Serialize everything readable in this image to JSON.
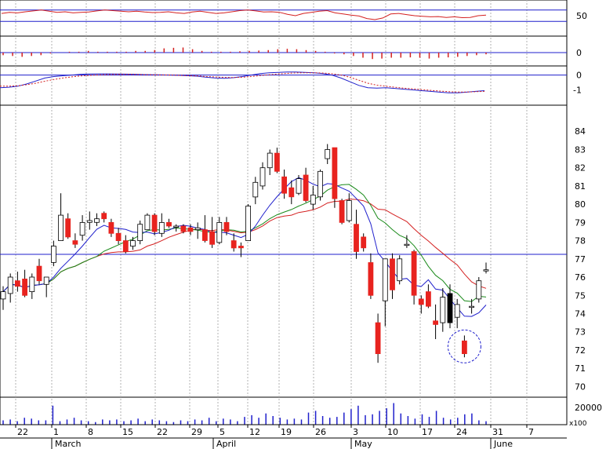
{
  "colors": {
    "up_candle": "#ffffff",
    "down_candle": "#e8231f",
    "neutral_candle": "#000000",
    "ma_fast": "#1f1fcc",
    "ma_mid": "#1a8a1a",
    "ma_slow": "#d42020",
    "rsi_line": "#d42020",
    "ref_line": "#1f1fcc",
    "macd_signal": "#d42020",
    "grid": "#b0b0b0",
    "circle": "#1f1fcc"
  },
  "chart_data": [
    {
      "type": "line",
      "panel": "oscillator",
      "ylim": [
        0,
        100
      ],
      "ticks": [
        "50"
      ],
      "ref_levels": [
        30,
        70
      ],
      "values": [
        58,
        62,
        60,
        64,
        67,
        70,
        66,
        62,
        64,
        60,
        62,
        63,
        67,
        70,
        68,
        66,
        64,
        66,
        63,
        61,
        62,
        64,
        60,
        58,
        63,
        66,
        62,
        58,
        60,
        64,
        68,
        70,
        67,
        63,
        64,
        62,
        55,
        50,
        58,
        62,
        66,
        68,
        60,
        56,
        52,
        49,
        40,
        36,
        42,
        56,
        58,
        54,
        50,
        48,
        46,
        47,
        44,
        46,
        43,
        44,
        50,
        52
      ]
    },
    {
      "type": "bar",
      "panel": "histogram",
      "ylim": [
        -0.6,
        0.6
      ],
      "ticks": [
        "0"
      ],
      "values": [
        -0.15,
        -0.2,
        -0.25,
        -0.2,
        -0.15,
        -0.05,
        0,
        0.05,
        0.05,
        0.1,
        0.05,
        0.05,
        0.05,
        0.05,
        0.1,
        0.1,
        0.15,
        0.25,
        0.28,
        0.3,
        0.2,
        0.1,
        0.05,
        0.05,
        0.05,
        0.08,
        0.1,
        0.12,
        0.15,
        0.2,
        0.22,
        0.2,
        0.15,
        0.1,
        0.05,
        -0.05,
        -0.1,
        -0.2,
        -0.3,
        -0.38,
        -0.35,
        -0.3,
        -0.3,
        -0.28,
        -0.3,
        -0.35,
        -0.3,
        -0.28,
        -0.25,
        -0.2,
        -0.15,
        -0.1
      ]
    },
    {
      "type": "line",
      "panel": "macd",
      "ylim": [
        -1.5,
        0.4
      ],
      "ticks": [
        "0",
        "-1"
      ],
      "series": [
        {
          "values": [
            -0.85,
            -0.82,
            -0.75,
            -0.6,
            -0.4,
            -0.2,
            -0.1,
            -0.05,
            0,
            0.05,
            0.07,
            0.08,
            0.08,
            0.07,
            0.06,
            0.05,
            0.03,
            0.02,
            0.01,
            0.0,
            -0.02,
            -0.05,
            -0.08,
            -0.15,
            -0.2,
            -0.22,
            -0.18,
            -0.1,
            0.0,
            0.1,
            0.15,
            0.18,
            0.2,
            0.2,
            0.18,
            0.15,
            0.1,
            0.0,
            -0.2,
            -0.45,
            -0.7,
            -0.85,
            -0.88,
            -0.85,
            -0.9,
            -0.95,
            -1.0,
            -1.05,
            -1.1,
            -1.15,
            -1.2,
            -1.2,
            -1.15,
            -1.1,
            -1.05
          ]
        },
        {
          "values": [
            -0.75,
            -0.75,
            -0.72,
            -0.65,
            -0.55,
            -0.42,
            -0.3,
            -0.2,
            -0.12,
            -0.06,
            -0.02,
            0.01,
            0.03,
            0.04,
            0.04,
            0.04,
            0.03,
            0.02,
            0.01,
            0.0,
            -0.02,
            -0.04,
            -0.06,
            -0.1,
            -0.13,
            -0.16,
            -0.17,
            -0.15,
            -0.1,
            -0.04,
            0.02,
            0.07,
            0.11,
            0.14,
            0.15,
            0.15,
            0.13,
            0.09,
            0.0,
            -0.15,
            -0.35,
            -0.55,
            -0.68,
            -0.75,
            -0.82,
            -0.88,
            -0.93,
            -0.98,
            -1.03,
            -1.08,
            -1.12,
            -1.14,
            -1.14,
            -1.12,
            -1.1
          ]
        }
      ]
    },
    {
      "type": "candlestick",
      "panel": "price",
      "ylim": [
        69.5,
        85
      ],
      "yticks": [
        70,
        71,
        72,
        73,
        74,
        75,
        76,
        77,
        78,
        79,
        80,
        81,
        82,
        83,
        84
      ],
      "xticks": [
        "22",
        "1",
        "8",
        "15",
        "22",
        "29",
        "5",
        "12",
        "19",
        "26",
        "3",
        "10",
        "17",
        "24",
        "31",
        "7"
      ],
      "months": [
        "March",
        "April",
        "May",
        "June"
      ],
      "horizontal_line": 77.25,
      "candles": [
        {
          "o": 74.8,
          "h": 75.5,
          "l": 74.2,
          "c": 75.2
        },
        {
          "o": 75.1,
          "h": 76.2,
          "l": 74.6,
          "c": 76.0
        },
        {
          "o": 75.8,
          "h": 76.3,
          "l": 75.2,
          "c": 75.5
        },
        {
          "o": 75.9,
          "h": 76.4,
          "l": 74.9,
          "c": 75.0
        },
        {
          "o": 75.2,
          "h": 76.2,
          "l": 74.8,
          "c": 76.0
        },
        {
          "o": 76.6,
          "h": 77.0,
          "l": 75.6,
          "c": 75.8
        },
        {
          "o": 75.6,
          "h": 76.0,
          "l": 74.9,
          "c": 76.0
        },
        {
          "o": 76.8,
          "h": 78.0,
          "l": 76.6,
          "c": 77.7
        },
        {
          "o": 78.0,
          "h": 80.6,
          "l": 78.0,
          "c": 79.4
        },
        {
          "o": 79.2,
          "h": 79.5,
          "l": 78.1,
          "c": 78.2
        },
        {
          "o": 78.0,
          "h": 78.4,
          "l": 77.6,
          "c": 77.8
        },
        {
          "o": 78.3,
          "h": 79.4,
          "l": 78.0,
          "c": 79.0
        },
        {
          "o": 79.0,
          "h": 79.6,
          "l": 78.6,
          "c": 79.1
        },
        {
          "o": 79.0,
          "h": 79.5,
          "l": 78.8,
          "c": 79.2
        },
        {
          "o": 79.5,
          "h": 79.6,
          "l": 79.0,
          "c": 79.2
        },
        {
          "o": 79.0,
          "h": 79.2,
          "l": 78.2,
          "c": 78.4
        },
        {
          "o": 78.4,
          "h": 78.7,
          "l": 77.8,
          "c": 78.0
        },
        {
          "o": 78.0,
          "h": 78.3,
          "l": 77.3,
          "c": 77.4
        },
        {
          "o": 77.7,
          "h": 78.2,
          "l": 77.5,
          "c": 78.0
        },
        {
          "o": 78.0,
          "h": 79.1,
          "l": 77.8,
          "c": 78.9
        },
        {
          "o": 78.6,
          "h": 79.5,
          "l": 78.6,
          "c": 79.4
        },
        {
          "o": 79.4,
          "h": 79.5,
          "l": 78.3,
          "c": 78.5
        },
        {
          "o": 78.4,
          "h": 79.5,
          "l": 78.2,
          "c": 79.0
        },
        {
          "o": 79.0,
          "h": 79.2,
          "l": 78.7,
          "c": 78.8
        },
        {
          "o": 78.8,
          "h": 78.9,
          "l": 78.5,
          "c": 78.8
        },
        {
          "o": 78.8,
          "h": 78.9,
          "l": 78.4,
          "c": 78.5
        },
        {
          "o": 78.7,
          "h": 78.9,
          "l": 78.3,
          "c": 78.5
        },
        {
          "o": 78.6,
          "h": 79.0,
          "l": 78.1,
          "c": 78.7
        },
        {
          "o": 78.6,
          "h": 79.4,
          "l": 77.9,
          "c": 78.0
        },
        {
          "o": 78.5,
          "h": 79.3,
          "l": 77.6,
          "c": 77.8
        },
        {
          "o": 77.9,
          "h": 79.3,
          "l": 77.8,
          "c": 79.0
        },
        {
          "o": 79.0,
          "h": 79.3,
          "l": 78.3,
          "c": 78.5
        },
        {
          "o": 78.0,
          "h": 78.4,
          "l": 77.4,
          "c": 77.6
        },
        {
          "o": 77.7,
          "h": 77.9,
          "l": 77.1,
          "c": 77.6
        },
        {
          "o": 78.0,
          "h": 80.0,
          "l": 78.0,
          "c": 79.9
        },
        {
          "o": 80.4,
          "h": 81.5,
          "l": 80.0,
          "c": 81.2
        },
        {
          "o": 81.0,
          "h": 82.3,
          "l": 80.8,
          "c": 82.0
        },
        {
          "o": 82.0,
          "h": 83.0,
          "l": 81.6,
          "c": 82.8
        },
        {
          "o": 82.8,
          "h": 83.1,
          "l": 81.7,
          "c": 81.8
        },
        {
          "o": 81.5,
          "h": 81.9,
          "l": 80.3,
          "c": 80.6
        },
        {
          "o": 80.9,
          "h": 81.3,
          "l": 80.0,
          "c": 80.4
        },
        {
          "o": 80.6,
          "h": 81.6,
          "l": 80.5,
          "c": 81.4
        },
        {
          "o": 81.6,
          "h": 82.0,
          "l": 80.1,
          "c": 80.2
        },
        {
          "o": 80.0,
          "h": 81.0,
          "l": 79.7,
          "c": 80.5
        },
        {
          "o": 80.4,
          "h": 81.9,
          "l": 80.2,
          "c": 81.8
        },
        {
          "o": 82.5,
          "h": 83.3,
          "l": 82.2,
          "c": 83.0
        },
        {
          "o": 83.1,
          "h": 83.1,
          "l": 79.8,
          "c": 80.3
        },
        {
          "o": 80.2,
          "h": 80.3,
          "l": 78.9,
          "c": 79.0
        },
        {
          "o": 79.1,
          "h": 80.6,
          "l": 79.0,
          "c": 80.2
        },
        {
          "o": 78.9,
          "h": 79.7,
          "l": 77.0,
          "c": 77.4
        },
        {
          "o": 78.2,
          "h": 78.4,
          "l": 77.4,
          "c": 77.6
        },
        {
          "o": 76.8,
          "h": 77.3,
          "l": 74.8,
          "c": 75.0
        },
        {
          "o": 73.5,
          "h": 74.0,
          "l": 71.3,
          "c": 71.8
        },
        {
          "o": 74.7,
          "h": 77.0,
          "l": 73.3,
          "c": 77.0
        },
        {
          "o": 77.0,
          "h": 77.3,
          "l": 74.8,
          "c": 75.3
        },
        {
          "o": 75.8,
          "h": 77.2,
          "l": 75.6,
          "c": 77.0
        },
        {
          "o": 77.8,
          "h": 78.3,
          "l": 77.6,
          "c": 77.8
        },
        {
          "o": 77.4,
          "h": 77.5,
          "l": 74.5,
          "c": 75.0
        },
        {
          "o": 74.8,
          "h": 75.0,
          "l": 74.0,
          "c": 74.5
        },
        {
          "o": 75.2,
          "h": 75.6,
          "l": 74.3,
          "c": 74.4
        },
        {
          "o": 73.6,
          "h": 74.5,
          "l": 72.6,
          "c": 73.4
        },
        {
          "o": 73.5,
          "h": 75.4,
          "l": 73.0,
          "c": 74.9
        },
        {
          "o": 75.1,
          "h": 75.6,
          "l": 73.2,
          "c": 73.5
        },
        {
          "o": 73.8,
          "h": 74.8,
          "l": 73.2,
          "c": 74.5
        },
        {
          "o": 72.5,
          "h": 72.8,
          "l": 71.6,
          "c": 71.8
        },
        {
          "o": 74.4,
          "h": 74.8,
          "l": 74.0,
          "c": 74.4
        },
        {
          "o": 74.8,
          "h": 76.0,
          "l": 74.6,
          "c": 75.8
        },
        {
          "o": 76.4,
          "h": 76.8,
          "l": 76.2,
          "c": 76.4
        }
      ]
    },
    {
      "type": "bar",
      "panel": "volume",
      "ylim": [
        0,
        30000
      ],
      "ticks": [
        "20000",
        "x100"
      ],
      "values": [
        5000,
        6000,
        4000,
        8000,
        7000,
        5000,
        5000,
        22000,
        4000,
        6000,
        8000,
        5000,
        4000,
        3000,
        6000,
        5000,
        6000,
        4000,
        5000,
        7000,
        4000,
        6000,
        5000,
        4000,
        3000,
        5000,
        4000,
        6000,
        5000,
        8000,
        4000,
        7000,
        6000,
        4000,
        9000,
        11000,
        8000,
        13000,
        10000,
        8000,
        6000,
        7000,
        6000,
        14000,
        16000,
        10000,
        8000,
        9000,
        14000,
        18000,
        22000,
        11000,
        12000,
        16000,
        19000,
        25000,
        13000,
        10000,
        7000,
        12000,
        9000,
        16000,
        8000,
        6000,
        8000,
        12000,
        13000,
        5000,
        4000
      ]
    }
  ]
}
